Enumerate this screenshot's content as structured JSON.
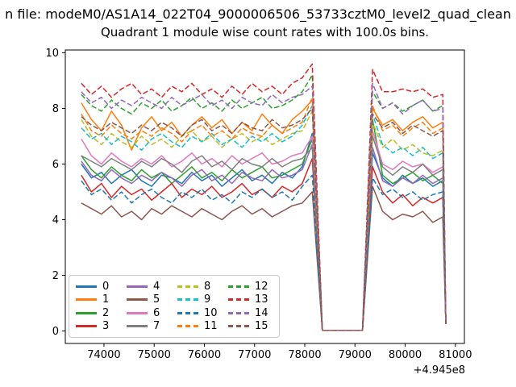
{
  "figure": {
    "suptitle_visible": "n file: modeM0/AS1A14_022T04_9000006506_53733cztM0_level2_quad_clean",
    "background": "#ffffff"
  },
  "chart_data": {
    "type": "line",
    "title": "Quadrant 1 module wise count rates with 100.0s bins.",
    "suptitle_visible": "n file: modeM0/AS1A14_022T04_9000006506_53733cztM0_level2_quad_clean",
    "xlabel": "",
    "ylabel": "",
    "x_offset_label": "+4.945e8",
    "xlim": [
      73230,
      81180
    ],
    "ylim": [
      -0.45,
      10.1
    ],
    "xticks": [
      74000,
      75000,
      76000,
      77000,
      78000,
      79000,
      80000,
      81000
    ],
    "yticks": [
      0,
      2,
      4,
      6,
      8,
      10
    ],
    "grid": false,
    "legend_position": "lower left",
    "legend_columns": 4,
    "axis_color": "#000000",
    "x": [
      73550,
      73750,
      73950,
      74150,
      74350,
      74550,
      74750,
      74950,
      75150,
      75350,
      75550,
      75750,
      75950,
      76150,
      76350,
      76550,
      76750,
      76950,
      77150,
      77350,
      77550,
      77750,
      77950,
      78150,
      78350,
      78550,
      78750,
      78950,
      79150,
      79350,
      79550,
      79750,
      79950,
      80150,
      80350,
      80550,
      80750,
      80810
    ],
    "series": [
      {
        "name": "0",
        "color": "#1f77b4",
        "dash": false,
        "values": [
          6.0,
          5.5,
          5.7,
          5.3,
          5.6,
          5.8,
          5.4,
          5.2,
          5.6,
          5.5,
          5.3,
          5.7,
          5.4,
          5.6,
          5.2,
          5.5,
          5.8,
          5.4,
          5.6,
          5.3,
          5.7,
          5.5,
          5.9,
          7.1,
          0.02,
          0.02,
          0.02,
          0.02,
          0.02,
          6.4,
          5.5,
          5.2,
          5.6,
          5.3,
          5.5,
          5.2,
          5.4,
          0.25
        ]
      },
      {
        "name": "1",
        "color": "#ff7f0e",
        "dash": false,
        "values": [
          8.2,
          7.6,
          7.2,
          7.9,
          7.4,
          6.5,
          7.3,
          7.7,
          7.2,
          7.5,
          7.0,
          7.4,
          7.7,
          7.3,
          7.6,
          7.1,
          7.5,
          7.2,
          7.8,
          7.4,
          7.1,
          7.6,
          7.9,
          8.3,
          0.02,
          0.02,
          0.02,
          0.02,
          0.02,
          8.0,
          7.4,
          7.6,
          7.2,
          7.5,
          7.7,
          7.3,
          7.5,
          0.25
        ]
      },
      {
        "name": "2",
        "color": "#2ca02c",
        "dash": false,
        "values": [
          6.3,
          5.8,
          5.5,
          5.9,
          5.6,
          5.4,
          5.8,
          5.5,
          5.7,
          5.3,
          5.6,
          5.9,
          5.5,
          5.7,
          5.4,
          5.8,
          5.5,
          5.7,
          5.9,
          5.5,
          5.6,
          5.8,
          6.0,
          6.9,
          0.02,
          0.02,
          0.02,
          0.02,
          0.02,
          7.6,
          5.6,
          5.3,
          5.5,
          5.7,
          5.4,
          5.6,
          5.3,
          0.25
        ]
      },
      {
        "name": "3",
        "color": "#d62728",
        "dash": false,
        "values": [
          5.6,
          5.0,
          5.3,
          4.8,
          5.2,
          4.9,
          5.1,
          4.7,
          5.0,
          5.3,
          4.8,
          5.1,
          4.9,
          5.2,
          4.8,
          5.0,
          5.3,
          4.9,
          5.1,
          4.8,
          5.2,
          5.0,
          5.3,
          6.2,
          0.02,
          0.02,
          0.02,
          0.02,
          0.02,
          5.9,
          5.0,
          4.6,
          4.9,
          4.5,
          4.8,
          4.6,
          4.8,
          0.25
        ]
      },
      {
        "name": "4",
        "color": "#9467bd",
        "dash": false,
        "values": [
          6.1,
          5.6,
          5.4,
          5.8,
          5.5,
          5.3,
          5.6,
          5.4,
          5.7,
          5.5,
          5.2,
          5.6,
          5.8,
          5.4,
          5.6,
          5.3,
          5.7,
          5.5,
          5.4,
          5.8,
          5.5,
          5.6,
          5.8,
          6.7,
          0.02,
          0.02,
          0.02,
          0.02,
          0.02,
          6.6,
          5.4,
          5.2,
          5.5,
          5.3,
          5.6,
          5.3,
          5.5,
          0.25
        ]
      },
      {
        "name": "5",
        "color": "#8c564b",
        "dash": false,
        "values": [
          4.6,
          4.4,
          4.2,
          4.5,
          4.1,
          4.3,
          4.0,
          4.4,
          4.2,
          4.5,
          4.3,
          4.1,
          4.4,
          4.2,
          4.0,
          4.3,
          4.5,
          4.2,
          4.4,
          4.1,
          4.3,
          4.5,
          4.6,
          5.0,
          0.02,
          0.02,
          0.02,
          0.02,
          0.02,
          5.2,
          4.3,
          4.0,
          4.2,
          4.1,
          4.3,
          3.9,
          4.1,
          0.25
        ]
      },
      {
        "name": "6",
        "color": "#e377c2",
        "dash": false,
        "values": [
          6.9,
          6.3,
          6.0,
          6.4,
          6.1,
          5.9,
          6.2,
          6.0,
          6.3,
          5.9,
          6.1,
          6.4,
          6.0,
          6.2,
          5.9,
          6.3,
          6.0,
          6.2,
          6.4,
          6.0,
          6.1,
          6.3,
          6.4,
          7.0,
          0.02,
          0.02,
          0.02,
          0.02,
          0.02,
          7.2,
          6.0,
          5.8,
          6.1,
          5.9,
          6.0,
          5.7,
          5.9,
          0.25
        ]
      },
      {
        "name": "7",
        "color": "#7f7f7f",
        "dash": false,
        "values": [
          6.3,
          6.1,
          5.9,
          6.2,
          6.0,
          5.8,
          6.1,
          5.9,
          6.2,
          6.0,
          5.7,
          6.1,
          6.3,
          5.9,
          6.1,
          5.8,
          6.2,
          6.0,
          5.9,
          6.2,
          5.9,
          6.1,
          6.2,
          6.6,
          0.02,
          0.02,
          0.02,
          0.02,
          0.02,
          7.0,
          5.9,
          5.6,
          5.9,
          5.7,
          6.0,
          5.6,
          5.8,
          0.25
        ]
      },
      {
        "name": "8",
        "color": "#bcbd22",
        "dash": true,
        "values": [
          7.6,
          7.0,
          6.7,
          7.1,
          6.8,
          6.6,
          7.0,
          6.7,
          6.9,
          6.6,
          7.0,
          7.2,
          6.8,
          7.0,
          6.6,
          6.9,
          7.1,
          6.8,
          7.0,
          6.7,
          6.9,
          7.1,
          7.2,
          7.9,
          0.02,
          0.02,
          0.02,
          0.02,
          0.02,
          7.5,
          6.6,
          6.9,
          6.5,
          6.7,
          6.4,
          6.3,
          6.5,
          0.25
        ]
      },
      {
        "name": "9",
        "color": "#17becf",
        "dash": true,
        "values": [
          7.3,
          6.9,
          7.1,
          6.7,
          7.0,
          6.8,
          6.5,
          6.9,
          7.1,
          6.8,
          6.6,
          7.0,
          6.8,
          7.1,
          6.7,
          6.9,
          6.6,
          7.0,
          6.8,
          7.1,
          6.8,
          7.0,
          7.4,
          8.1,
          0.02,
          0.02,
          0.02,
          0.02,
          0.02,
          7.8,
          6.7,
          6.4,
          6.6,
          6.3,
          6.6,
          6.2,
          6.4,
          0.25
        ]
      },
      {
        "name": "10",
        "color": "#1f77b4",
        "dash": true,
        "values": [
          5.4,
          4.9,
          5.1,
          4.7,
          5.0,
          4.6,
          4.9,
          5.1,
          4.8,
          4.6,
          5.0,
          4.8,
          5.1,
          4.7,
          4.9,
          4.6,
          5.0,
          4.8,
          5.1,
          4.8,
          5.0,
          4.7,
          5.2,
          5.6,
          0.02,
          0.02,
          0.02,
          0.02,
          0.02,
          5.5,
          4.9,
          5.1,
          4.8,
          5.0,
          4.7,
          4.9,
          5.0,
          0.25
        ]
      },
      {
        "name": "11",
        "color": "#ff7f0e",
        "dash": true,
        "values": [
          7.8,
          7.2,
          7.0,
          7.4,
          7.1,
          6.9,
          7.2,
          7.0,
          7.3,
          7.1,
          6.8,
          7.2,
          7.4,
          7.0,
          7.2,
          6.9,
          7.3,
          7.1,
          7.0,
          7.4,
          7.1,
          7.3,
          7.5,
          8.4,
          0.02,
          0.02,
          0.02,
          0.02,
          0.02,
          8.1,
          7.2,
          7.4,
          7.0,
          7.3,
          7.5,
          7.1,
          7.3,
          0.25
        ]
      },
      {
        "name": "12",
        "color": "#2ca02c",
        "dash": true,
        "values": [
          8.5,
          8.1,
          7.9,
          8.3,
          8.0,
          7.8,
          8.2,
          8.0,
          8.3,
          7.9,
          8.1,
          8.4,
          8.0,
          8.2,
          7.9,
          8.3,
          8.0,
          8.2,
          8.4,
          8.0,
          8.1,
          8.3,
          8.6,
          9.2,
          0.02,
          0.02,
          0.02,
          0.02,
          0.02,
          8.6,
          8.0,
          8.2,
          7.9,
          8.1,
          8.3,
          7.9,
          8.1,
          0.25
        ]
      },
      {
        "name": "13",
        "color": "#d62728",
        "dash": true,
        "values": [
          8.9,
          8.5,
          8.8,
          8.4,
          8.7,
          8.9,
          8.5,
          8.7,
          8.4,
          8.8,
          8.6,
          8.9,
          8.5,
          8.7,
          8.4,
          8.8,
          8.5,
          8.9,
          8.6,
          8.8,
          8.5,
          8.9,
          9.1,
          9.6,
          0.02,
          0.02,
          0.02,
          0.02,
          0.02,
          9.4,
          8.6,
          8.6,
          8.7,
          8.6,
          8.7,
          8.4,
          8.5,
          0.25
        ]
      },
      {
        "name": "14",
        "color": "#9467bd",
        "dash": true,
        "values": [
          8.6,
          8.2,
          8.4,
          8.0,
          8.3,
          8.1,
          8.4,
          8.2,
          8.0,
          8.4,
          8.1,
          8.3,
          8.5,
          8.1,
          8.3,
          8.0,
          8.4,
          8.2,
          8.1,
          8.5,
          8.2,
          8.4,
          8.5,
          8.8,
          0.02,
          0.02,
          0.02,
          0.02,
          0.02,
          8.9,
          8.0,
          8.2,
          7.8,
          8.1,
          8.3,
          7.9,
          8.0,
          0.25
        ]
      },
      {
        "name": "15",
        "color": "#8c564b",
        "dash": true,
        "values": [
          7.7,
          7.4,
          7.2,
          7.5,
          7.3,
          7.1,
          7.4,
          7.2,
          7.5,
          7.3,
          7.0,
          7.4,
          7.6,
          7.2,
          7.4,
          7.1,
          7.5,
          7.3,
          7.2,
          7.6,
          7.3,
          7.4,
          7.6,
          8.0,
          0.02,
          0.02,
          0.02,
          0.02,
          0.02,
          7.8,
          7.3,
          7.5,
          7.1,
          7.4,
          7.2,
          7.0,
          7.2,
          0.25
        ]
      }
    ]
  }
}
